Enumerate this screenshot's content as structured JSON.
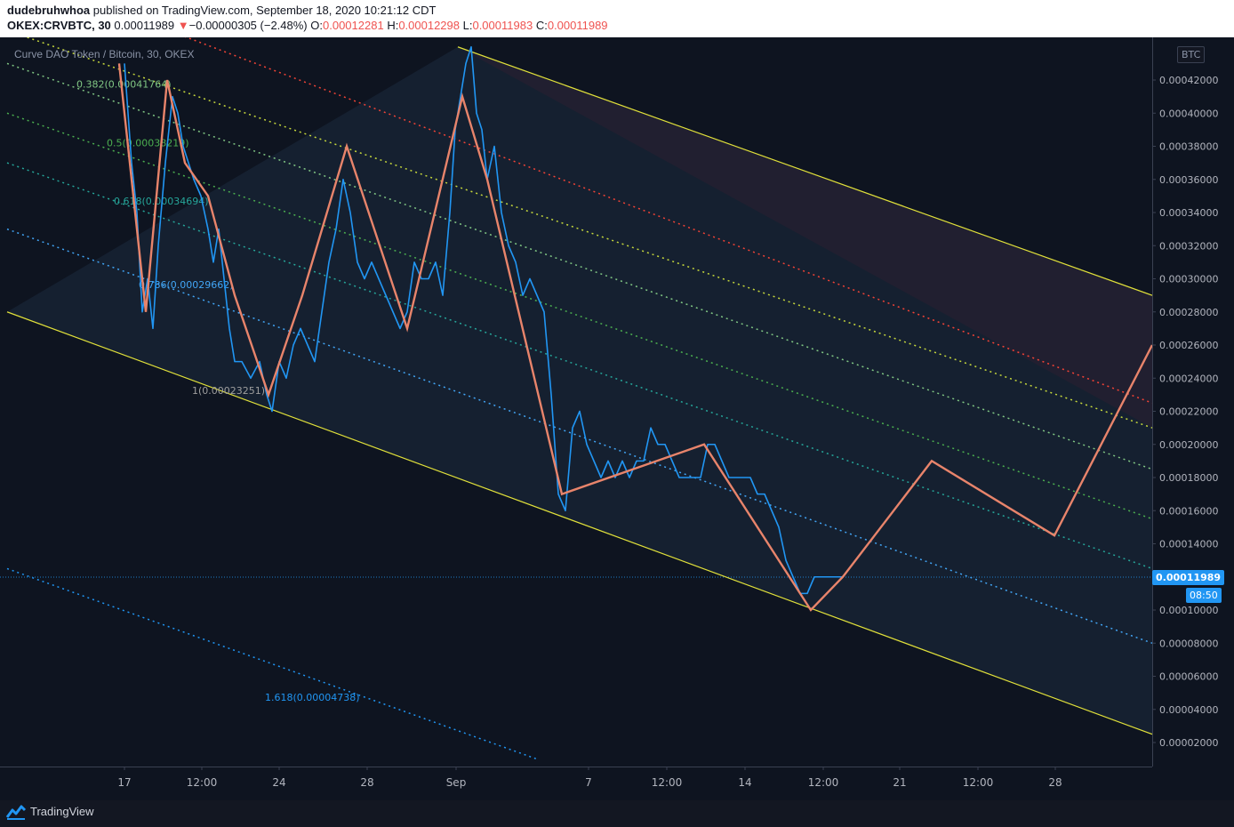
{
  "header": {
    "author": "dudebruhwhoa",
    "published_text": "published on TradingView.com, September 18, 2020 10:21:12 CDT",
    "symbol": "OKEX:CRVBTC, 30",
    "last": "0.00011989",
    "change_arrow": "▼",
    "change": "−0.00000305 (−2.48%)",
    "o_label": "O:",
    "o_value": "0.00012281",
    "h_label": "H:",
    "h_value": "0.00012298",
    "l_label": "L:",
    "l_value": "0.00011983",
    "c_label": "C:",
    "c_value": "0.00011989"
  },
  "legend": {
    "title": "Curve DAO Token / Bitcoin, 30, OKEX"
  },
  "currency_badge": "BTC",
  "price_badge": "0.00011989",
  "time_badge": "08:50",
  "footer": {
    "brand": "TradingView"
  },
  "colors": {
    "background": "#0e1420",
    "price_line": "#2196f3",
    "zigzag": "#e8846b",
    "channel": "#e0e03a",
    "fib_0382": "#81c784",
    "fib_05": "#4caf50",
    "fib_0618": "#26a69a",
    "fib_0786": "#42a5f5",
    "fib_1": "#9e9e9e",
    "fib_1618": "#2196f3",
    "red_level": "#f44336",
    "yellow_level": "#c6d83c"
  },
  "chart_data": {
    "type": "line",
    "title": "Curve DAO Token / Bitcoin, 30, OKEX",
    "xlabel": "",
    "ylabel": "",
    "ylim": [
      1e-05,
      0.00044
    ],
    "y_ticks": [
      "0.00042000",
      "0.00040000",
      "0.00038000",
      "0.00036000",
      "0.00034000",
      "0.00032000",
      "0.00030000",
      "0.00028000",
      "0.00026000",
      "0.00024000",
      "0.00022000",
      "0.00020000",
      "0.00018000",
      "0.00016000",
      "0.00014000",
      "0.00012000",
      "0.00010000",
      "0.00008000",
      "0.00006000",
      "0.00004000",
      "0.00002000"
    ],
    "y_tick_values": [
      0.00042,
      0.0004,
      0.00038,
      0.00036,
      0.00034,
      0.00032,
      0.0003,
      0.00028,
      0.00026,
      0.00024,
      0.00022,
      0.0002,
      0.00018,
      0.00016,
      0.00014,
      0.00012,
      0.0001,
      8e-05,
      6e-05,
      4e-05,
      2e-05
    ],
    "x_ticks": [
      "17",
      "12:00",
      "24",
      "28",
      "Sep",
      "7",
      "12:00",
      "14",
      "12:00",
      "21",
      "12:00",
      "28"
    ],
    "x_tick_values": [
      0,
      0.5,
      1,
      2,
      3,
      4,
      4.5,
      5,
      5.5,
      6,
      6.5,
      7
    ],
    "x_tick_pos": [
      140,
      227,
      314,
      413,
      513,
      662,
      750,
      838,
      926,
      1012,
      1100,
      1187
    ],
    "price_series": {
      "name": "CRVBTC",
      "points": [
        [
          140,
          0.00043
        ],
        [
          148,
          0.00037
        ],
        [
          154,
          0.00034
        ],
        [
          160,
          0.00028
        ],
        [
          166,
          0.0003
        ],
        [
          172,
          0.00027
        ],
        [
          178,
          0.00032
        ],
        [
          186,
          0.00037
        ],
        [
          194,
          0.00041
        ],
        [
          200,
          0.0004
        ],
        [
          206,
          0.00038
        ],
        [
          212,
          0.00037
        ],
        [
          218,
          0.00036
        ],
        [
          226,
          0.00035
        ],
        [
          234,
          0.00033
        ],
        [
          240,
          0.00031
        ],
        [
          246,
          0.00033
        ],
        [
          252,
          0.0003
        ],
        [
          258,
          0.00027
        ],
        [
          264,
          0.00025
        ],
        [
          272,
          0.00025
        ],
        [
          282,
          0.00024
        ],
        [
          292,
          0.00025
        ],
        [
          300,
          0.00023
        ],
        [
          306,
          0.00022
        ],
        [
          314,
          0.00025
        ],
        [
          322,
          0.00024
        ],
        [
          330,
          0.00026
        ],
        [
          338,
          0.00027
        ],
        [
          346,
          0.00026
        ],
        [
          354,
          0.00025
        ],
        [
          362,
          0.00028
        ],
        [
          370,
          0.00031
        ],
        [
          378,
          0.00033
        ],
        [
          386,
          0.00036
        ],
        [
          394,
          0.00034
        ],
        [
          402,
          0.00031
        ],
        [
          410,
          0.0003
        ],
        [
          418,
          0.00031
        ],
        [
          426,
          0.0003
        ],
        [
          434,
          0.00029
        ],
        [
          442,
          0.00028
        ],
        [
          450,
          0.00027
        ],
        [
          458,
          0.00028
        ],
        [
          466,
          0.00031
        ],
        [
          474,
          0.0003
        ],
        [
          482,
          0.0003
        ],
        [
          490,
          0.00031
        ],
        [
          498,
          0.00029
        ],
        [
          506,
          0.00034
        ],
        [
          512,
          0.00039
        ],
        [
          518,
          0.00041
        ],
        [
          524,
          0.00043
        ],
        [
          530,
          0.00044
        ],
        [
          536,
          0.0004
        ],
        [
          542,
          0.00039
        ],
        [
          548,
          0.00036
        ],
        [
          556,
          0.00038
        ],
        [
          564,
          0.00034
        ],
        [
          572,
          0.00032
        ],
        [
          580,
          0.00031
        ],
        [
          588,
          0.00029
        ],
        [
          596,
          0.0003
        ],
        [
          604,
          0.00029
        ],
        [
          612,
          0.00028
        ],
        [
          620,
          0.00023
        ],
        [
          628,
          0.00017
        ],
        [
          636,
          0.00016
        ],
        [
          644,
          0.00021
        ],
        [
          652,
          0.00022
        ],
        [
          660,
          0.0002
        ],
        [
          668,
          0.00019
        ],
        [
          676,
          0.00018
        ],
        [
          684,
          0.00019
        ],
        [
          692,
          0.00018
        ],
        [
          700,
          0.00019
        ],
        [
          708,
          0.00018
        ],
        [
          716,
          0.00019
        ],
        [
          724,
          0.00019
        ],
        [
          732,
          0.00021
        ],
        [
          740,
          0.0002
        ],
        [
          748,
          0.0002
        ],
        [
          756,
          0.00019
        ],
        [
          764,
          0.00018
        ],
        [
          772,
          0.00018
        ],
        [
          780,
          0.00018
        ],
        [
          788,
          0.00018
        ],
        [
          796,
          0.0002
        ],
        [
          804,
          0.0002
        ],
        [
          812,
          0.00019
        ],
        [
          820,
          0.00018
        ],
        [
          828,
          0.00018
        ],
        [
          836,
          0.00018
        ],
        [
          844,
          0.00018
        ],
        [
          852,
          0.00017
        ],
        [
          860,
          0.00017
        ],
        [
          868,
          0.00016
        ],
        [
          876,
          0.00015
        ],
        [
          884,
          0.00013
        ],
        [
          892,
          0.00012
        ],
        [
          900,
          0.00011
        ],
        [
          908,
          0.00011
        ],
        [
          916,
          0.00012
        ],
        [
          924,
          0.00012
        ],
        [
          932,
          0.00012
        ],
        [
          940,
          0.00012
        ],
        [
          948,
          0.00012
        ]
      ]
    },
    "zigzag": {
      "name": "projection",
      "points": [
        [
          134,
          0.00043
        ],
        [
          164,
          0.00028
        ],
        [
          188,
          0.00042
        ],
        [
          208,
          0.00037
        ],
        [
          234,
          0.00035
        ],
        [
          264,
          0.00029
        ],
        [
          302,
          0.00023
        ],
        [
          340,
          0.00029
        ],
        [
          390,
          0.00038
        ],
        [
          458,
          0.00027
        ],
        [
          520,
          0.00041
        ],
        [
          548,
          0.00036
        ],
        [
          632,
          0.00017
        ],
        [
          792,
          0.0002
        ],
        [
          912,
          0.0001
        ],
        [
          948,
          0.00012
        ],
        [
          1048,
          0.00019
        ],
        [
          1186,
          0.000145
        ],
        [
          1296,
          0.00026
        ]
      ]
    },
    "channel_upper": [
      [
        515,
        0.00044
      ],
      [
        1296,
        0.00029
      ]
    ],
    "channel_lower": [
      [
        8,
        0.00028
      ],
      [
        1296,
        2.5e-05
      ]
    ],
    "fib_levels": [
      {
        "label": "0.382(0.00041764)",
        "value": 0.00041764,
        "color": "#81c784",
        "label_x": 86,
        "line": [
          [
            8,
            0.00043
          ],
          [
            1296,
            0.000185
          ]
        ]
      },
      {
        "label": "0.5(0.00038219)",
        "value": 0.00038219,
        "color": "#4caf50",
        "label_x": 120,
        "line": [
          [
            8,
            0.0004
          ],
          [
            1296,
            0.000155
          ]
        ]
      },
      {
        "label": "0.618(0.00034694)",
        "value": 0.00034694,
        "color": "#26a69a",
        "label_x": 128,
        "line": [
          [
            8,
            0.00037
          ],
          [
            1296,
            0.000125
          ]
        ]
      },
      {
        "label": "0.786(0.00029662)",
        "value": 0.00029662,
        "color": "#42a5f5",
        "label_x": 156,
        "line": [
          [
            8,
            0.00033
          ],
          [
            1296,
            8e-05
          ]
        ]
      },
      {
        "label": "1(0.00023251)",
        "value": 0.00023251,
        "color": "#9e9e9e",
        "label_x": 216,
        "line": null
      },
      {
        "label": "1.618(0.00004738)",
        "value": 4.738e-05,
        "color": "#2196f3",
        "label_x": 298,
        "line": [
          [
            8,
            0.000125
          ],
          [
            604,
            1e-05
          ]
        ]
      }
    ],
    "extra_levels": [
      {
        "color": "#f44336",
        "line": [
          [
            140,
            0.00046
          ],
          [
            1296,
            0.000225
          ]
        ]
      },
      {
        "color": "#c6d83c",
        "line": [
          [
            8,
            0.00045
          ],
          [
            1296,
            0.00021
          ]
        ]
      }
    ]
  }
}
